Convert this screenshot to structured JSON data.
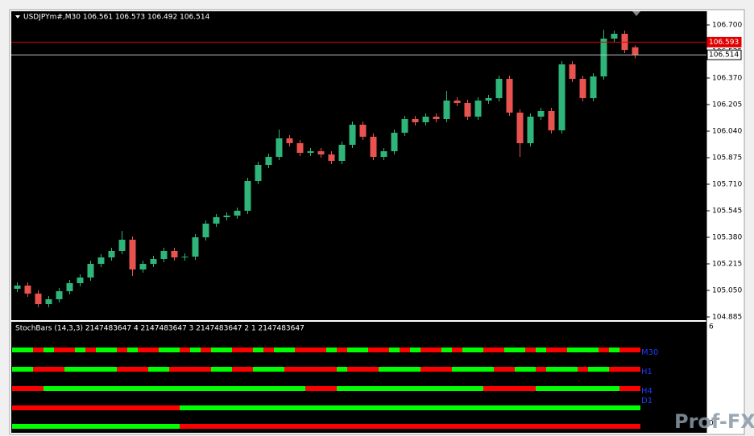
{
  "chart_data": {
    "type": "candlestick",
    "title": "USDJPYm#,M30  106.561 106.573 106.492 106.514",
    "open": [
      105.06,
      105.08,
      105.03,
      104.965,
      104.995,
      105.045,
      105.095,
      105.13,
      105.215,
      105.255,
      105.295,
      105.365,
      105.18,
      105.215,
      105.245,
      105.295,
      105.255,
      105.26,
      105.38,
      105.465,
      105.505,
      105.515,
      105.545,
      105.73,
      105.83,
      105.88,
      105.995,
      105.965,
      105.905,
      105.915,
      105.895,
      105.855,
      105.955,
      106.08,
      106.005,
      105.88,
      105.915,
      106.03,
      106.115,
      106.095,
      106.13,
      106.115,
      106.23,
      106.215,
      106.13,
      106.23,
      106.245,
      106.365,
      106.155,
      105.965,
      106.13,
      106.165,
      106.045,
      106.455,
      106.365,
      106.245,
      106.38,
      106.615,
      106.645,
      106.561
    ],
    "high": [
      105.1,
      105.1,
      105.05,
      105.015,
      105.065,
      105.115,
      105.15,
      105.235,
      105.275,
      105.315,
      105.42,
      105.385,
      105.235,
      105.265,
      105.315,
      105.315,
      105.28,
      105.4,
      105.485,
      105.525,
      105.535,
      105.565,
      105.75,
      105.85,
      105.9,
      106.05,
      106.015,
      105.985,
      105.935,
      105.935,
      105.915,
      105.975,
      106.1,
      106.1,
      106.025,
      105.935,
      106.05,
      106.135,
      106.135,
      106.15,
      106.15,
      106.29,
      106.25,
      106.235,
      106.25,
      106.265,
      106.385,
      106.385,
      106.175,
      106.15,
      106.185,
      106.185,
      106.475,
      106.475,
      106.385,
      106.4,
      106.67,
      106.665,
      106.665,
      106.573
    ],
    "low": [
      105.04,
      105.01,
      104.945,
      104.945,
      104.975,
      105.025,
      105.075,
      105.11,
      105.195,
      105.235,
      105.275,
      105.14,
      105.16,
      105.195,
      105.225,
      105.235,
      105.235,
      105.24,
      105.36,
      105.445,
      105.485,
      105.495,
      105.525,
      105.71,
      105.81,
      105.86,
      105.945,
      105.885,
      105.885,
      105.875,
      105.835,
      105.835,
      105.935,
      105.985,
      105.86,
      105.86,
      105.895,
      106.01,
      106.075,
      106.075,
      106.095,
      106.095,
      106.195,
      106.11,
      106.11,
      106.21,
      106.225,
      106.135,
      105.88,
      105.945,
      106.11,
      106.025,
      106.025,
      106.345,
      106.225,
      106.225,
      106.36,
      106.595,
      106.525,
      106.492
    ],
    "close": [
      105.08,
      105.03,
      104.965,
      104.995,
      105.045,
      105.095,
      105.13,
      105.215,
      105.255,
      105.295,
      105.365,
      105.18,
      105.215,
      105.245,
      105.295,
      105.255,
      105.26,
      105.38,
      105.465,
      105.505,
      105.515,
      105.545,
      105.73,
      105.83,
      105.88,
      105.995,
      105.965,
      105.905,
      105.915,
      105.895,
      105.855,
      105.955,
      106.08,
      106.005,
      105.88,
      105.915,
      106.03,
      106.115,
      106.095,
      106.13,
      106.115,
      106.23,
      106.215,
      106.13,
      106.23,
      106.245,
      106.365,
      106.155,
      105.965,
      106.13,
      106.165,
      106.045,
      106.455,
      106.365,
      106.245,
      106.38,
      106.615,
      106.645,
      106.545,
      106.514
    ],
    "ylim": [
      104.865,
      106.785
    ],
    "yticks": [
      {
        "value": 106.7,
        "label": "106.700"
      },
      {
        "value": 106.535,
        "label": "106.535"
      },
      {
        "value": 106.37,
        "label": "106.370"
      },
      {
        "value": 106.205,
        "label": "106.205"
      },
      {
        "value": 106.04,
        "label": "106.040"
      },
      {
        "value": 105.875,
        "label": "105.875"
      },
      {
        "value": 105.71,
        "label": "105.710"
      },
      {
        "value": 105.545,
        "label": "105.545"
      },
      {
        "value": 105.38,
        "label": "105.380"
      },
      {
        "value": 105.215,
        "label": "105.215"
      },
      {
        "value": 105.05,
        "label": "105.050"
      },
      {
        "value": 104.885,
        "label": "104.885"
      }
    ],
    "up_color": "#2fb47a",
    "down_color": "#e8534f",
    "bid_line": {
      "value": 106.593,
      "label": "106.593",
      "color": "#e00000"
    },
    "last_line": {
      "value": 106.514,
      "label": "106.514",
      "color": "#c0c0c0"
    }
  },
  "indicator": {
    "title": "StochBars (14,3,3) 2147483647 4 2147483647 3 2147483647 2 1 2147483647",
    "top_label": "6",
    "bottom_label": "0",
    "up_color": "#00ff00",
    "down_color": "#ff0000",
    "rows": [
      {
        "label": "M30",
        "states": [
          1,
          1,
          0,
          1,
          0,
          0,
          1,
          0,
          1,
          1,
          0,
          1,
          0,
          0,
          1,
          1,
          0,
          1,
          0,
          1,
          1,
          0,
          0,
          1,
          0,
          1,
          1,
          0,
          0,
          0,
          1,
          0,
          1,
          1,
          0,
          0,
          1,
          0,
          1,
          0,
          0,
          1,
          0,
          1,
          1,
          0,
          0,
          1,
          1,
          0,
          1,
          0,
          0,
          1,
          1,
          1,
          0,
          1,
          0,
          0
        ]
      },
      {
        "label": "H1",
        "states": [
          1,
          1,
          0,
          0,
          0,
          1,
          1,
          1,
          1,
          1,
          0,
          0,
          0,
          1,
          1,
          0,
          0,
          0,
          0,
          1,
          1,
          0,
          0,
          1,
          1,
          1,
          0,
          0,
          0,
          0,
          0,
          1,
          0,
          0,
          0,
          1,
          1,
          1,
          1,
          0,
          0,
          0,
          1,
          1,
          1,
          1,
          0,
          0,
          1,
          1,
          0,
          1,
          1,
          1,
          0,
          1,
          1,
          0,
          0,
          0
        ]
      },
      {
        "label": "H4",
        "states": [
          0,
          0,
          0,
          1,
          1,
          1,
          1,
          1,
          1,
          1,
          1,
          1,
          1,
          1,
          1,
          1,
          1,
          1,
          1,
          1,
          1,
          1,
          1,
          1,
          1,
          1,
          1,
          1,
          0,
          0,
          0,
          1,
          1,
          1,
          1,
          1,
          1,
          1,
          1,
          1,
          1,
          1,
          1,
          1,
          1,
          0,
          0,
          0,
          0,
          0,
          1,
          1,
          1,
          1,
          1,
          1,
          1,
          1,
          0,
          0
        ]
      },
      {
        "label": "D1",
        "states": [
          0,
          0,
          0,
          0,
          0,
          0,
          0,
          0,
          0,
          0,
          0,
          0,
          0,
          0,
          0,
          0,
          1,
          1,
          1,
          1,
          1,
          1,
          1,
          1,
          1,
          1,
          1,
          1,
          1,
          1,
          1,
          1,
          1,
          1,
          1,
          1,
          1,
          1,
          1,
          1,
          1,
          1,
          1,
          1,
          1,
          1,
          1,
          1,
          1,
          1,
          1,
          1,
          1,
          1,
          1,
          1,
          1,
          1,
          1,
          1
        ]
      },
      {
        "states": [
          1,
          1,
          1,
          1,
          1,
          1,
          1,
          1,
          1,
          1,
          1,
          1,
          1,
          1,
          1,
          1,
          0,
          0,
          0,
          0,
          0,
          0,
          0,
          0,
          0,
          0,
          0,
          0,
          0,
          0,
          0,
          0,
          0,
          0,
          0,
          0,
          0,
          0,
          0,
          0,
          0,
          0,
          0,
          0,
          0,
          0,
          0,
          0,
          0,
          0,
          0,
          0,
          0,
          0,
          0,
          0,
          0,
          0,
          0,
          0
        ]
      }
    ]
  },
  "watermark": "Prof-FX"
}
